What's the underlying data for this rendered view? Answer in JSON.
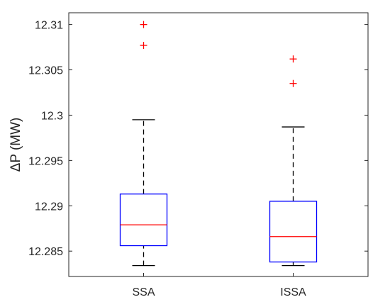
{
  "chart_data": {
    "type": "boxplot",
    "title": "",
    "xlabel": "",
    "ylabel": "ΔP (MW)",
    "ylim": [
      12.2822,
      12.3113
    ],
    "yticks": [
      12.285,
      12.29,
      12.295,
      12.3,
      12.305,
      12.31
    ],
    "ytick_labels": [
      "12.285",
      "12.29",
      "12.295",
      "12.3",
      "12.305",
      "12.31"
    ],
    "categories": [
      "SSA",
      "ISSA"
    ],
    "boxes": [
      {
        "label": "SSA",
        "whisker_low": 12.2834,
        "q1": 12.2856,
        "median": 12.2879,
        "q3": 12.2913,
        "whisker_high": 12.2995,
        "outliers": [
          12.3077,
          12.31
        ]
      },
      {
        "label": "ISSA",
        "whisker_low": 12.2834,
        "q1": 12.2838,
        "median": 12.2866,
        "q3": 12.2905,
        "whisker_high": 12.2987,
        "outliers": [
          12.3035,
          12.3062
        ]
      }
    ],
    "grid": false,
    "colors": {
      "box": "#0000ff",
      "median": "#ff0000",
      "outlier": "#ff0000",
      "whisker": "#000000"
    }
  }
}
